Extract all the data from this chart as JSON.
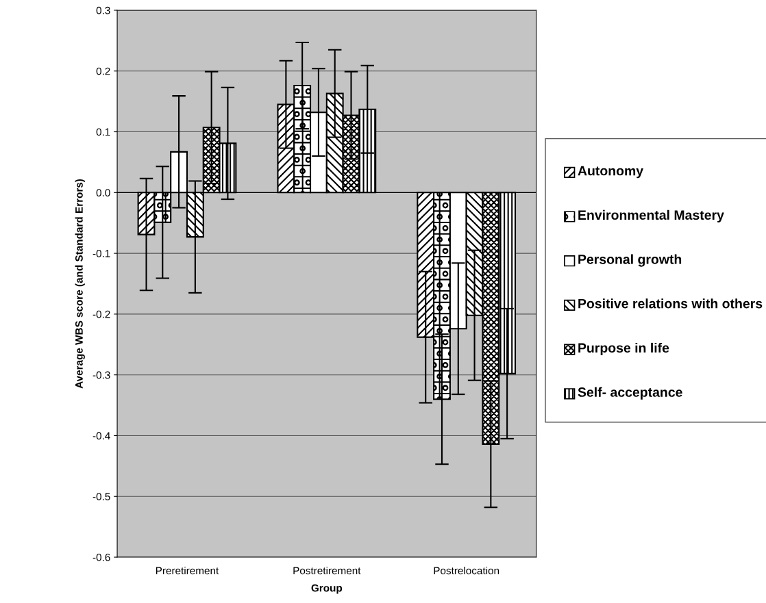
{
  "chart_data": {
    "type": "bar",
    "xlabel": "Group",
    "ylabel": "Average WBS score (and Standard Errors)",
    "categories": [
      "Preretirement",
      "Postretirement",
      "Postrelocation"
    ],
    "series": [
      {
        "name": "Autonomy",
        "color": "#000000",
        "values": [
          -0.069,
          0.145,
          -0.238
        ],
        "errors": [
          0.092,
          0.072,
          0.108
        ]
      },
      {
        "name": "Environmental Mastery",
        "color": "#000000",
        "values": [
          -0.049,
          0.176,
          -0.34
        ],
        "errors": [
          0.092,
          0.071,
          0.107
        ]
      },
      {
        "name": "Personal growth",
        "color": "#ffffff",
        "values": [
          0.067,
          0.132,
          -0.224
        ],
        "errors": [
          0.092,
          0.072,
          0.108
        ]
      },
      {
        "name": "Positive relations with others",
        "color": "#000000",
        "values": [
          -0.073,
          0.163,
          -0.202
        ],
        "errors": [
          0.092,
          0.072,
          0.107
        ]
      },
      {
        "name": "Purpose in life",
        "color": "#000000",
        "values": [
          0.107,
          0.127,
          -0.414
        ],
        "errors": [
          0.092,
          0.072,
          0.104
        ]
      },
      {
        "name": "Self- acceptance",
        "color": "#000000",
        "values": [
          0.081,
          0.137,
          -0.298
        ],
        "errors": [
          0.092,
          0.072,
          0.107
        ]
      }
    ],
    "ylim": [
      -0.6,
      0.3
    ],
    "yticks": [
      {
        "value": -0.6,
        "label": "-0.6"
      },
      {
        "value": -0.5,
        "label": "-0.5"
      },
      {
        "value": -0.4,
        "label": "-0.4"
      },
      {
        "value": -0.3,
        "label": "-0.3"
      },
      {
        "value": -0.2,
        "label": "-0.2"
      },
      {
        "value": -0.1,
        "label": "-0.1"
      },
      {
        "value": 0.0,
        "label": "0.0"
      },
      {
        "value": 0.1,
        "label": "0.1"
      },
      {
        "value": 0.2,
        "label": "0.2"
      },
      {
        "value": 0.3,
        "label": "0.3"
      }
    ],
    "grid": "y",
    "legend": "right"
  }
}
